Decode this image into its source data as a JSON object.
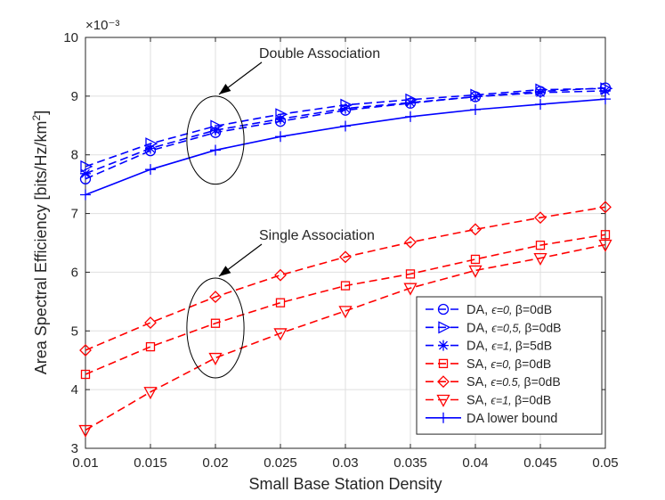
{
  "chart_data": {
    "type": "line",
    "title": "",
    "xlabel": "Small Base Station Density",
    "ylabel": "Area Spectral Efficiency [bits/Hz/km²]",
    "y_exponent_label": "×10⁻³",
    "xlim": [
      0.01,
      0.05
    ],
    "ylim": [
      3,
      10
    ],
    "x_ticks": [
      0.01,
      0.015,
      0.02,
      0.025,
      0.03,
      0.035,
      0.04,
      0.045,
      0.05
    ],
    "x_tick_labels": [
      "0.01",
      "0.015",
      "0.02",
      "0.025",
      "0.03",
      "0.035",
      "0.04",
      "0.045",
      "0.05"
    ],
    "y_ticks": [
      3,
      4,
      5,
      6,
      7,
      8,
      9,
      10
    ],
    "y_tick_labels": [
      "3",
      "4",
      "5",
      "6",
      "7",
      "8",
      "9",
      "10"
    ],
    "grid": true,
    "legend_position": "bottom-right",
    "x": [
      0.01,
      0.015,
      0.02,
      0.025,
      0.03,
      0.035,
      0.04,
      0.045,
      0.05
    ],
    "series": [
      {
        "name": "DA, ε=0, β=0dB",
        "color": "#0000ff",
        "dash": "dashed",
        "marker": "circle",
        "values": [
          7.59,
          8.07,
          8.38,
          8.57,
          8.76,
          8.88,
          8.99,
          9.08,
          9.14
        ]
      },
      {
        "name": "DA, ε=0.5, β=0dB",
        "color": "#0000ff",
        "dash": "dashed",
        "marker": "triangle-right",
        "values": [
          7.8,
          8.19,
          8.49,
          8.69,
          8.85,
          8.94,
          9.02,
          9.11,
          9.13
        ]
      },
      {
        "name": "DA, ε=1, β=5dB",
        "color": "#0000ff",
        "dash": "dashed",
        "marker": "asterisk",
        "values": [
          7.68,
          8.11,
          8.42,
          8.61,
          8.79,
          8.89,
          8.99,
          9.06,
          9.09
        ]
      },
      {
        "name": "SA, ε=0, β=0dB",
        "color": "#ff0000",
        "dash": "dashed",
        "marker": "square",
        "values": [
          4.26,
          4.73,
          5.13,
          5.48,
          5.77,
          5.97,
          6.22,
          6.46,
          6.64
        ]
      },
      {
        "name": "SA, ε=0.5, β=0dB",
        "color": "#ff0000",
        "dash": "dashed",
        "marker": "diamond",
        "values": [
          4.67,
          5.14,
          5.58,
          5.95,
          6.26,
          6.51,
          6.73,
          6.93,
          7.11
        ]
      },
      {
        "name": "SA, ε=1, β=0dB",
        "color": "#ff0000",
        "dash": "dashed",
        "marker": "triangle-down",
        "values": [
          3.31,
          3.96,
          4.54,
          4.96,
          5.34,
          5.73,
          6.03,
          6.24,
          6.47
        ]
      },
      {
        "name": "DA lower bound",
        "color": "#0000ff",
        "dash": "solid",
        "marker": "plus",
        "values": [
          7.32,
          7.75,
          8.08,
          8.31,
          8.49,
          8.65,
          8.77,
          8.86,
          8.95
        ]
      }
    ],
    "legend": [
      {
        "prefix": "DA, ",
        "eps": "ϵ=0, ",
        "beta": "β=0dB",
        "series_index": 0
      },
      {
        "prefix": "DA, ",
        "eps": "ϵ=0,5, ",
        "beta": "β=0dB",
        "series_index": 1
      },
      {
        "prefix": "DA, ",
        "eps": "ϵ=1, ",
        "beta": "β=5dB",
        "series_index": 2
      },
      {
        "prefix": "SA, ",
        "eps": "ϵ=0, ",
        "beta": "β=0dB",
        "series_index": 3
      },
      {
        "prefix": "SA, ",
        "eps": "ϵ=0.5, ",
        "beta": "β=0dB",
        "series_index": 4
      },
      {
        "prefix": "SA, ",
        "eps": "ϵ=1, ",
        "beta": "β=0dB",
        "series_index": 5
      },
      {
        "prefix": "DA lower bound",
        "eps": "",
        "beta": "",
        "series_index": 6
      }
    ],
    "annotations": [
      {
        "text": "Double Association",
        "ellipse_center_x": 0.02,
        "ellipse_center_y": 8.25,
        "ellipse_rx_data": 0.0022,
        "ellipse_ry_data": 0.75
      },
      {
        "text": "Single Association",
        "ellipse_center_x": 0.02,
        "ellipse_center_y": 5.05,
        "ellipse_rx_data": 0.0022,
        "ellipse_ry_data": 0.85
      }
    ]
  }
}
